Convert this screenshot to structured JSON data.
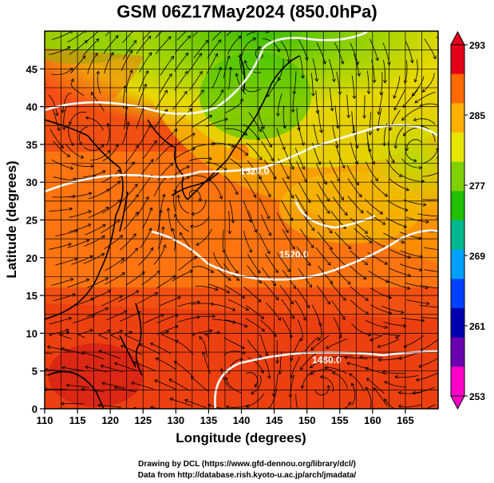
{
  "title": "GSM 06Z17May2024 (850.0hPa)",
  "xlabel": "Longitude (degrees)",
  "ylabel": "Latitude  (degrees)",
  "footer_line1": "Drawing by DCL (https://www.gfd-dennou.org/library/dcl/)",
  "footer_line2": "Data from http://database.rish.kyoto-u.ac.jp/arch/jmadata/",
  "colorbar_ticks": [
    "293",
    "285",
    "277",
    "269",
    "261",
    "253"
  ],
  "colorbar_colors": [
    "#e2001a",
    "#ff6a00",
    "#ffb000",
    "#e6e600",
    "#7fd000",
    "#1fc000",
    "#00b890",
    "#00a0ff",
    "#0040ff",
    "#0000b0",
    "#6a00b0",
    "#ff00c8"
  ],
  "chart_data": {
    "type": "map",
    "xticks": [
      "110",
      "115",
      "120",
      "125",
      "130",
      "135",
      "140",
      "145",
      "150",
      "155",
      "160",
      "165"
    ],
    "yticks": [
      "0",
      "5",
      "10",
      "15",
      "20",
      "25",
      "30",
      "35",
      "40",
      "45"
    ],
    "xlim": [
      110,
      170
    ],
    "ylim": [
      0,
      50
    ],
    "contour_labels": [
      {
        "text": "1520.0",
        "lon": 142,
        "lat": 31
      },
      {
        "text": "1520.0",
        "lon": 148,
        "lat": 20
      },
      {
        "text": "1480.0",
        "lon": 153,
        "lat": 6
      }
    ]
  }
}
